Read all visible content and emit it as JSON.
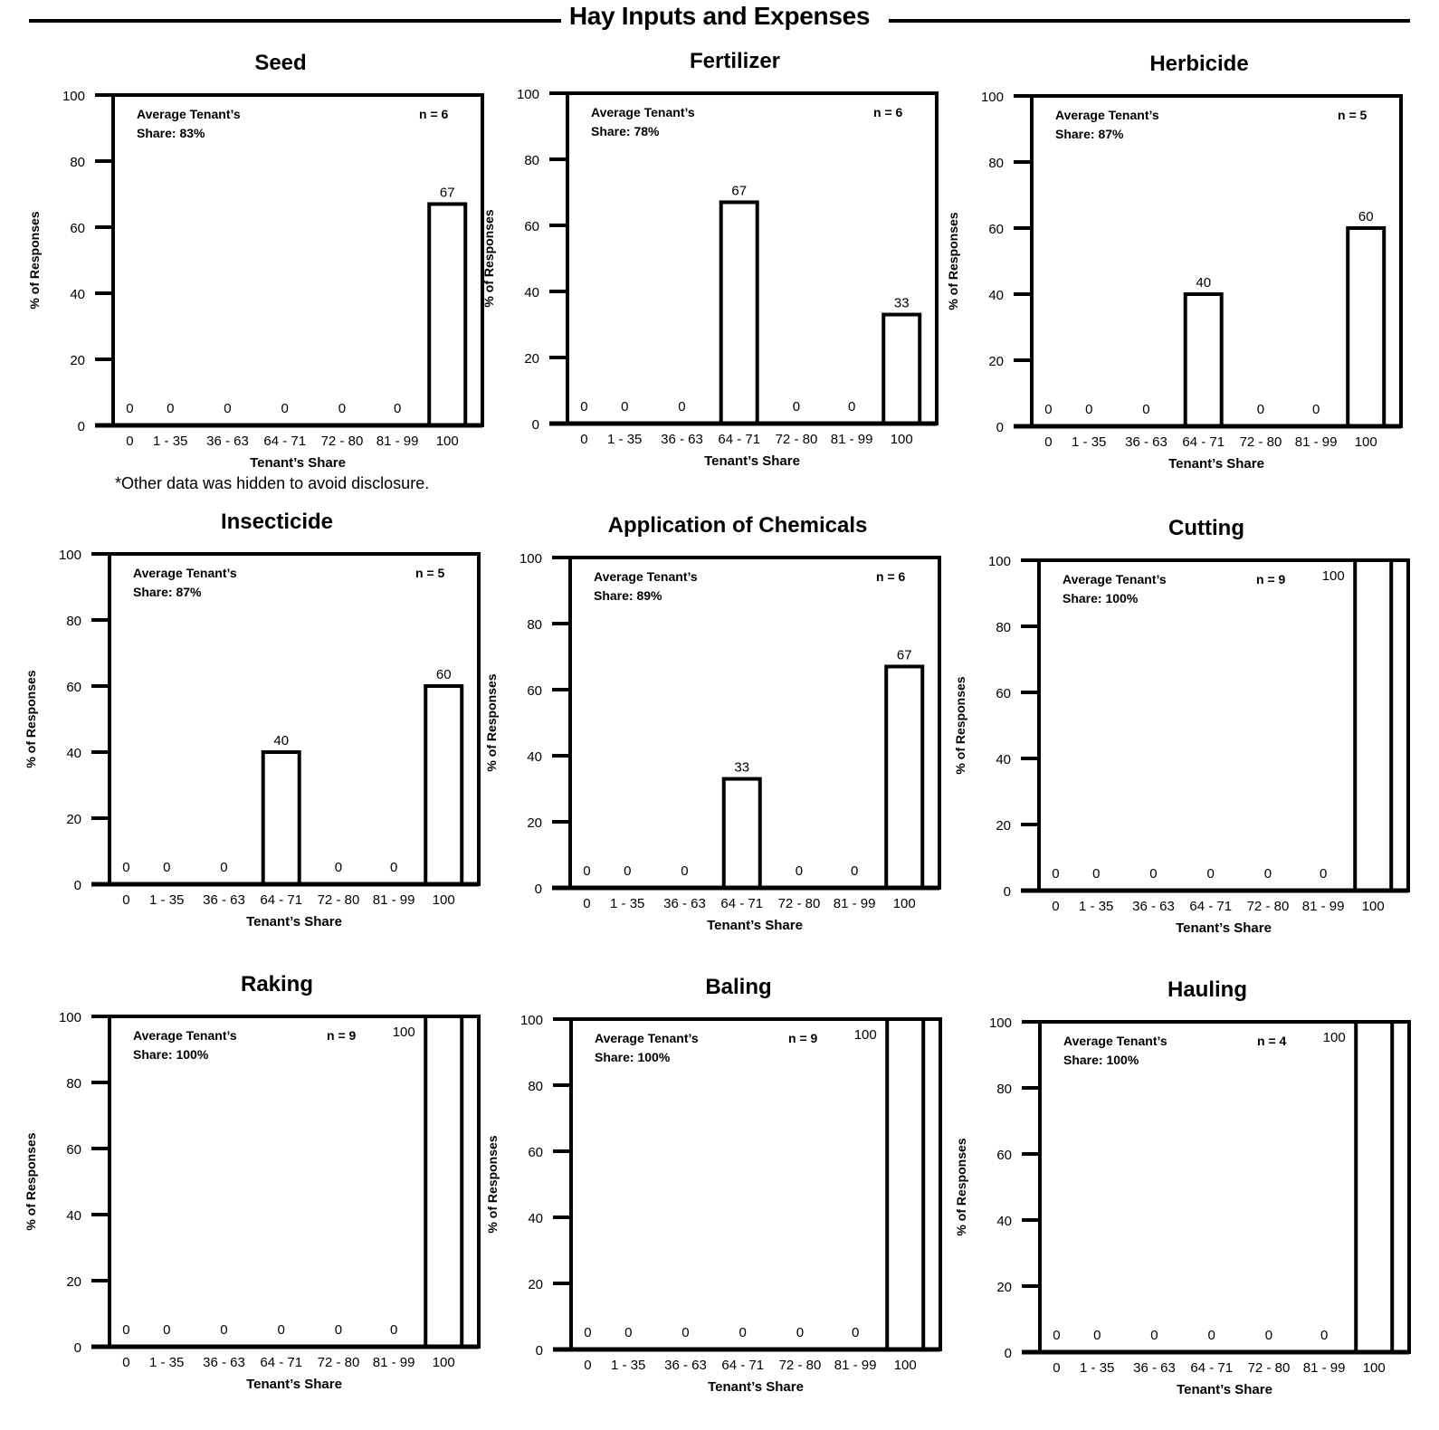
{
  "page_title": "Hay Inputs and Expenses",
  "footnote": "*Other data was hidden to avoid disclosure.",
  "colors": {
    "ink": "#000000",
    "bar_fill": "#ffffff"
  },
  "chart_data": [
    {
      "type": "bar",
      "title": "Seed",
      "categories": [
        "0",
        "1 - 35",
        "36 - 63",
        "64 - 71",
        "72 - 80",
        "81 - 99",
        "100"
      ],
      "values": [
        0,
        0,
        0,
        0,
        0,
        0,
        67
      ],
      "data_labels": [
        "0",
        "0",
        "0",
        "0",
        "0",
        "0",
        "67"
      ],
      "annotation_line1": "Average Tenant’s",
      "annotation_line2": "Share: 83%",
      "n_label": "n = 6",
      "xlabel": "Tenant’s Share",
      "ylabel": "% of Responses",
      "yticks": [
        "0",
        "20",
        "40",
        "60",
        "80",
        "100"
      ],
      "ylim": [
        0,
        100
      ],
      "grid": false
    },
    {
      "type": "bar",
      "title": "Fertilizer",
      "categories": [
        "0",
        "1 - 35",
        "36 - 63",
        "64 - 71",
        "72 - 80",
        "81 - 99",
        "100"
      ],
      "values": [
        0,
        0,
        0,
        67,
        0,
        0,
        33
      ],
      "data_labels": [
        "0",
        "0",
        "0",
        "67",
        "0",
        "0",
        "33"
      ],
      "annotation_line1": "Average Tenant’s",
      "annotation_line2": "Share: 78%",
      "n_label": "n = 6",
      "xlabel": "Tenant’s Share",
      "ylabel": "% of Responses",
      "yticks": [
        "0",
        "20",
        "40",
        "60",
        "80",
        "100"
      ],
      "ylim": [
        0,
        100
      ],
      "grid": false
    },
    {
      "type": "bar",
      "title": "Herbicide",
      "categories": [
        "0",
        "1 - 35",
        "36 - 63",
        "64 - 71",
        "72 - 80",
        "81 - 99",
        "100"
      ],
      "values": [
        0,
        0,
        0,
        40,
        0,
        0,
        60
      ],
      "data_labels": [
        "0",
        "0",
        "0",
        "40",
        "0",
        "0",
        "60"
      ],
      "annotation_line1": "Average Tenant’s",
      "annotation_line2": "Share: 87%",
      "n_label": "n = 5",
      "xlabel": "Tenant’s Share",
      "ylabel": "% of Responses",
      "yticks": [
        "0",
        "20",
        "40",
        "60",
        "80",
        "100"
      ],
      "ylim": [
        0,
        100
      ],
      "grid": false
    },
    {
      "type": "bar",
      "title": "Insecticide",
      "categories": [
        "0",
        "1 - 35",
        "36 - 63",
        "64 - 71",
        "72 - 80",
        "81 - 99",
        "100"
      ],
      "values": [
        0,
        0,
        0,
        40,
        0,
        0,
        60
      ],
      "data_labels": [
        "0",
        "0",
        "0",
        "40",
        "0",
        "0",
        "60"
      ],
      "annotation_line1": "Average Tenant’s",
      "annotation_line2": "Share: 87%",
      "n_label": "n = 5",
      "xlabel": "Tenant’s Share",
      "ylabel": "% of Responses",
      "yticks": [
        "0",
        "20",
        "40",
        "60",
        "80",
        "100"
      ],
      "ylim": [
        0,
        100
      ],
      "grid": false
    },
    {
      "type": "bar",
      "title": "Application of Chemicals",
      "categories": [
        "0",
        "1 - 35",
        "36 - 63",
        "64 - 71",
        "72 - 80",
        "81 - 99",
        "100"
      ],
      "values": [
        0,
        0,
        0,
        33,
        0,
        0,
        67
      ],
      "data_labels": [
        "0",
        "0",
        "0",
        "33",
        "0",
        "0",
        "67"
      ],
      "annotation_line1": "Average Tenant’s",
      "annotation_line2": "Share: 89%",
      "n_label": "n = 6",
      "xlabel": "Tenant’s Share",
      "ylabel": "% of Responses",
      "yticks": [
        "0",
        "20",
        "40",
        "60",
        "80",
        "100"
      ],
      "ylim": [
        0,
        100
      ],
      "grid": false
    },
    {
      "type": "bar",
      "title": "Cutting",
      "categories": [
        "0",
        "1 - 35",
        "36 - 63",
        "64 - 71",
        "72 - 80",
        "81 - 99",
        "100"
      ],
      "values": [
        0,
        0,
        0,
        0,
        0,
        0,
        100
      ],
      "data_labels": [
        "0",
        "0",
        "0",
        "0",
        "0",
        "0",
        "100"
      ],
      "annotation_line1": "Average Tenant’s",
      "annotation_line2": "Share: 100%",
      "n_label": "n = 9",
      "xlabel": "Tenant’s Share",
      "ylabel": "% of Responses",
      "yticks": [
        "0",
        "20",
        "40",
        "60",
        "80",
        "100"
      ],
      "ylim": [
        0,
        100
      ],
      "grid": false
    },
    {
      "type": "bar",
      "title": "Raking",
      "categories": [
        "0",
        "1 - 35",
        "36 - 63",
        "64 - 71",
        "72 - 80",
        "81 - 99",
        "100"
      ],
      "values": [
        0,
        0,
        0,
        0,
        0,
        0,
        100
      ],
      "data_labels": [
        "0",
        "0",
        "0",
        "0",
        "0",
        "0",
        "100"
      ],
      "annotation_line1": "Average Tenant’s",
      "annotation_line2": "Share: 100%",
      "n_label": "n = 9",
      "xlabel": "Tenant’s Share",
      "ylabel": "% of Responses",
      "yticks": [
        "0",
        "20",
        "40",
        "60",
        "80",
        "100"
      ],
      "ylim": [
        0,
        100
      ],
      "grid": false
    },
    {
      "type": "bar",
      "title": "Baling",
      "categories": [
        "0",
        "1 - 35",
        "36 - 63",
        "64 - 71",
        "72 - 80",
        "81 - 99",
        "100"
      ],
      "values": [
        0,
        0,
        0,
        0,
        0,
        0,
        100
      ],
      "data_labels": [
        "0",
        "0",
        "0",
        "0",
        "0",
        "0",
        "100"
      ],
      "annotation_line1": "Average Tenant’s",
      "annotation_line2": "Share: 100%",
      "n_label": "n = 9",
      "xlabel": "Tenant’s Share",
      "ylabel": "% of Responses",
      "yticks": [
        "0",
        "20",
        "40",
        "60",
        "80",
        "100"
      ],
      "ylim": [
        0,
        100
      ],
      "grid": false
    },
    {
      "type": "bar",
      "title": "Hauling",
      "categories": [
        "0",
        "1 - 35",
        "36 - 63",
        "64 - 71",
        "72 - 80",
        "81 - 99",
        "100"
      ],
      "values": [
        0,
        0,
        0,
        0,
        0,
        0,
        100
      ],
      "data_labels": [
        "0",
        "0",
        "0",
        "0",
        "0",
        "0",
        "100"
      ],
      "annotation_line1": "Average Tenant’s",
      "annotation_line2": "Share: 100%",
      "n_label": "n = 4",
      "xlabel": "Tenant’s Share",
      "ylabel": "% of Responses",
      "yticks": [
        "0",
        "20",
        "40",
        "60",
        "80",
        "100"
      ],
      "ylim": [
        0,
        100
      ],
      "grid": false
    }
  ]
}
